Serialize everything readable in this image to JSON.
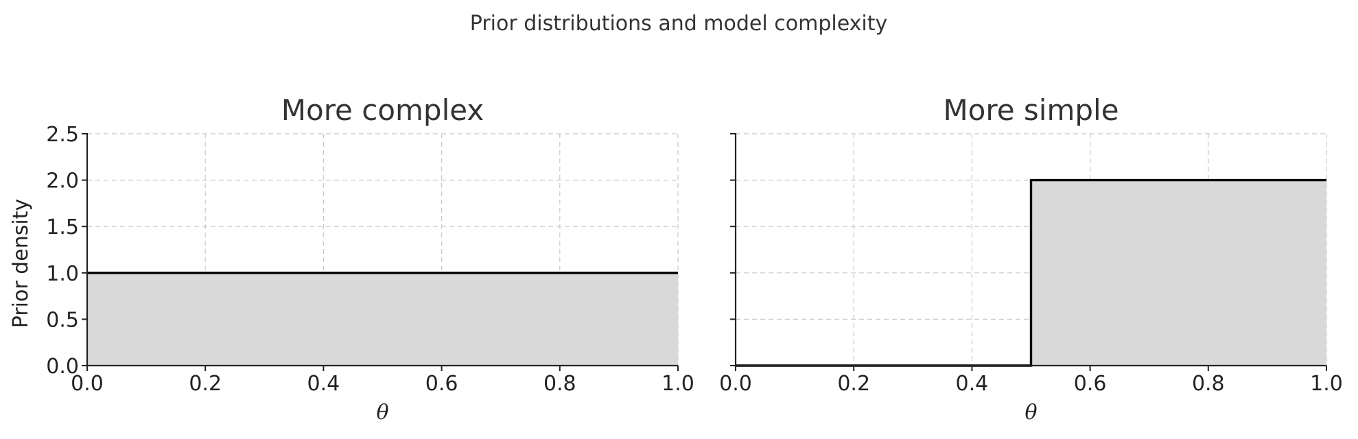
{
  "figure": {
    "suptitle": "Prior distributions and model complexity"
  },
  "colors": {
    "fill": "#d9d9d9",
    "line": "#000000",
    "grid": "#c8c8c8",
    "text": "#333333"
  },
  "chart_data": [
    {
      "type": "area",
      "title": "More complex",
      "xlabel": "θ",
      "ylabel": "Prior density",
      "xlim": [
        0.0,
        1.0
      ],
      "ylim": [
        0.0,
        2.5
      ],
      "x_ticks": [
        "0.0",
        "0.2",
        "0.4",
        "0.6",
        "0.8",
        "1.0"
      ],
      "y_ticks": [
        "0.0",
        "0.5",
        "1.0",
        "1.5",
        "2.0",
        "2.5"
      ],
      "y_tick_labels_shown": true,
      "grid": true,
      "series": [
        {
          "x": [
            0.0,
            1.0
          ],
          "y": [
            1.0,
            1.0
          ],
          "filled": true
        }
      ]
    },
    {
      "type": "area",
      "title": "More simple",
      "xlabel": "θ",
      "ylabel": "",
      "xlim": [
        0.0,
        1.0
      ],
      "ylim": [
        0.0,
        2.5
      ],
      "x_ticks": [
        "0.0",
        "0.2",
        "0.4",
        "0.6",
        "0.8",
        "1.0"
      ],
      "y_ticks": [
        "0.0",
        "0.5",
        "1.0",
        "1.5",
        "2.0",
        "2.5"
      ],
      "y_tick_labels_shown": false,
      "grid": true,
      "series": [
        {
          "x": [
            0.0,
            0.5,
            0.5,
            1.0
          ],
          "y": [
            0.0,
            0.0,
            2.0,
            2.0
          ],
          "filled": true
        }
      ]
    }
  ]
}
